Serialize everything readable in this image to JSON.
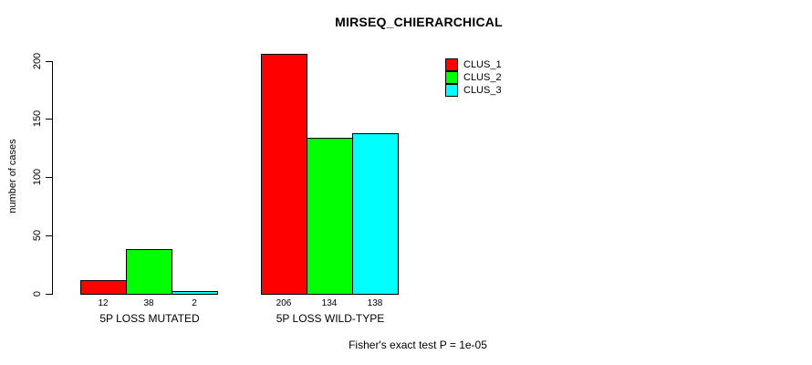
{
  "title": "MIRSEQ_CHIERARCHICAL",
  "footer": "Fisher's exact test P = 1e-05",
  "chart_data": {
    "type": "bar",
    "title": "MIRSEQ_CHIERARCHICAL",
    "ylabel": "number of cases",
    "xlabel": "",
    "categories": [
      "5P LOSS MUTATED",
      "5P LOSS WILD-TYPE"
    ],
    "series": [
      {
        "name": "CLUS_1",
        "color": "#ff0000",
        "values": [
          12,
          206
        ]
      },
      {
        "name": "CLUS_2",
        "color": "#00ff00",
        "values": [
          38,
          134
        ]
      },
      {
        "name": "CLUS_3",
        "color": "#00ffff",
        "values": [
          2,
          138
        ]
      }
    ],
    "bar_value_labels": [
      [
        12,
        38,
        2
      ],
      [
        206,
        134,
        138
      ]
    ],
    "yticks": [
      0,
      50,
      100,
      150,
      200
    ],
    "ylim": [
      0,
      200
    ],
    "grid": false,
    "legend_position": "top-right",
    "annotation": "Fisher's exact test P = 1e-05",
    "colors": {
      "background": "#ffffff",
      "axis": "#000000",
      "text": "#000000"
    }
  }
}
